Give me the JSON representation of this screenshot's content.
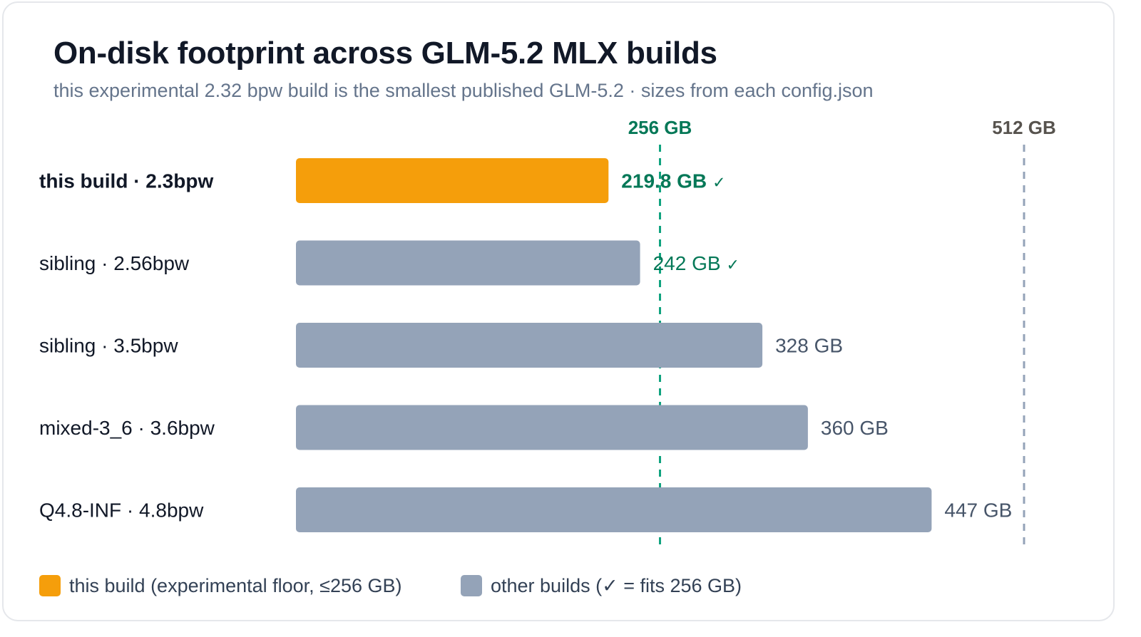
{
  "title": "On-disk footprint across GLM-5.2 MLX builds",
  "subtitle": "this experimental 2.32 bpw build is the smallest published GLM-5.2 · sizes from each config.json",
  "colors": {
    "highlight": "#f59e0b",
    "other": "#94a3b8",
    "fits": "#047857",
    "threshold_256": "#10a37f",
    "threshold_512": "#94a3b8",
    "label_dark": "#111827",
    "value_gray": "#475569",
    "ref_512_label": "#57534e"
  },
  "chart_data": {
    "type": "bar",
    "orientation": "horizontal",
    "title": "On-disk footprint across GLM-5.2 MLX builds",
    "subtitle": "this experimental 2.32 bpw build is the smallest published GLM-5.2 · sizes from each config.json",
    "unit": "GB",
    "xlim": [
      0,
      512
    ],
    "grid": false,
    "categories": [
      "this build · 2.3bpw",
      "sibling · 2.56bpw",
      "sibling · 3.5bpw",
      "mixed-3_6 · 3.6bpw",
      "Q4.8-INF · 4.8bpw"
    ],
    "values": [
      219.8,
      242,
      328,
      360,
      447
    ],
    "value_labels": [
      "219.8 GB",
      "242 GB",
      "328 GB",
      "360 GB",
      "447 GB"
    ],
    "fits_256": [
      true,
      true,
      false,
      false,
      false
    ],
    "highlight": [
      true,
      false,
      false,
      false,
      false
    ],
    "check_mark": "✓",
    "reference_lines": [
      {
        "value": 256,
        "label": "256 GB",
        "style": "dashed",
        "color": "#10a37f",
        "label_color": "#047857"
      },
      {
        "value": 512,
        "label": "512 GB",
        "style": "dashed",
        "color": "#94a3b8",
        "label_color": "#57534e"
      }
    ],
    "legend": {
      "placement": "bottom-left",
      "items": [
        {
          "label": "this build (experimental floor, ≤256 GB)",
          "color": "#f59e0b"
        },
        {
          "label": "other builds (✓ = fits 256 GB)",
          "color": "#94a3b8"
        }
      ]
    }
  }
}
